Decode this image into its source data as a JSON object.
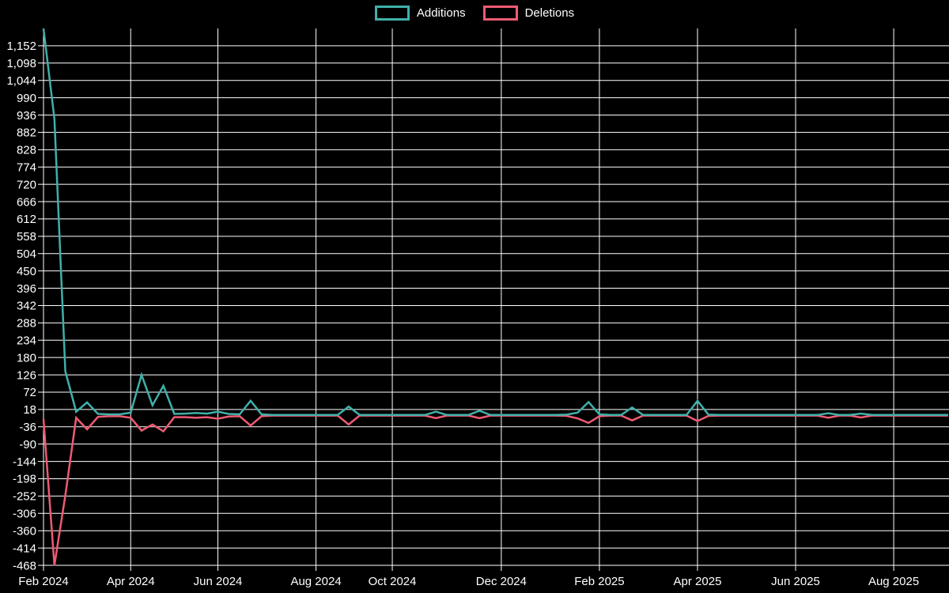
{
  "legend": {
    "items": [
      {
        "label": "Additions",
        "color": "#3fb0a9"
      },
      {
        "label": "Deletions",
        "color": "#ee5b73"
      }
    ]
  },
  "chart_data": {
    "type": "line",
    "title": "",
    "xlabel": "",
    "ylabel": "",
    "background_color": "#000000",
    "grid_color": "#ffffff",
    "text_color": "#ffffff",
    "grid": true,
    "legend_position": "top-center",
    "y_domain": [
      -468,
      1206
    ],
    "y_ticks": [
      1152,
      1098,
      1044,
      990,
      936,
      882,
      828,
      774,
      720,
      666,
      612,
      558,
      504,
      450,
      396,
      342,
      288,
      234,
      180,
      126,
      72,
      18,
      -36,
      -90,
      -144,
      -198,
      -252,
      -306,
      -360,
      -414,
      -468
    ],
    "x_tick_labels": [
      "Feb 2024",
      "Apr 2024",
      "Jun 2024",
      "Aug 2024",
      "Oct 2024",
      "Dec 2024",
      "Feb 2025",
      "Apr 2025",
      "Jun 2025",
      "Aug 2025"
    ],
    "x_tick_indices": [
      0,
      8,
      16,
      25,
      32,
      42,
      51,
      60,
      69,
      78
    ],
    "series": [
      {
        "name": "Additions",
        "color": "#3fb0a9",
        "values": [
          1206,
          925,
          137,
          11,
          40,
          4,
          3,
          3,
          8,
          126,
          31,
          92,
          4,
          5,
          7,
          5,
          11,
          4,
          3,
          45,
          3,
          1,
          1,
          1,
          1,
          1,
          1,
          1,
          27,
          1,
          1,
          1,
          1,
          1,
          1,
          1,
          11,
          1,
          1,
          1,
          14,
          1,
          1,
          1,
          1,
          1,
          1,
          1,
          2,
          8,
          41,
          3,
          1,
          1,
          24,
          1,
          1,
          1,
          1,
          1,
          45,
          2,
          1,
          1,
          1,
          1,
          1,
          1,
          1,
          1,
          1,
          1,
          6,
          1,
          1,
          5,
          1,
          1,
          1,
          1,
          1,
          1,
          1,
          1
        ]
      },
      {
        "name": "Deletions",
        "color": "#ee5b73",
        "values": [
          -12,
          -468,
          -250,
          -8,
          -44,
          -5,
          -3,
          -3,
          -8,
          -48,
          -29,
          -50,
          -6,
          -6,
          -8,
          -6,
          -11,
          -4,
          -3,
          -32,
          -3,
          -1,
          -1,
          -1,
          -1,
          -1,
          -1,
          -1,
          -29,
          -1,
          -1,
          -1,
          -1,
          -1,
          -1,
          -1,
          -9,
          -1,
          -1,
          -1,
          -9,
          -1,
          -1,
          -1,
          -1,
          -1,
          -1,
          -1,
          -2,
          -10,
          -24,
          -3,
          -1,
          -1,
          -16,
          -1,
          -1,
          -1,
          -1,
          -1,
          -18,
          -2,
          -1,
          -1,
          -1,
          -1,
          -1,
          -1,
          -1,
          -1,
          -1,
          -1,
          -8,
          -1,
          -1,
          -7,
          -1,
          -1,
          -1,
          -1,
          -1,
          -1,
          -1,
          -1
        ]
      }
    ]
  }
}
